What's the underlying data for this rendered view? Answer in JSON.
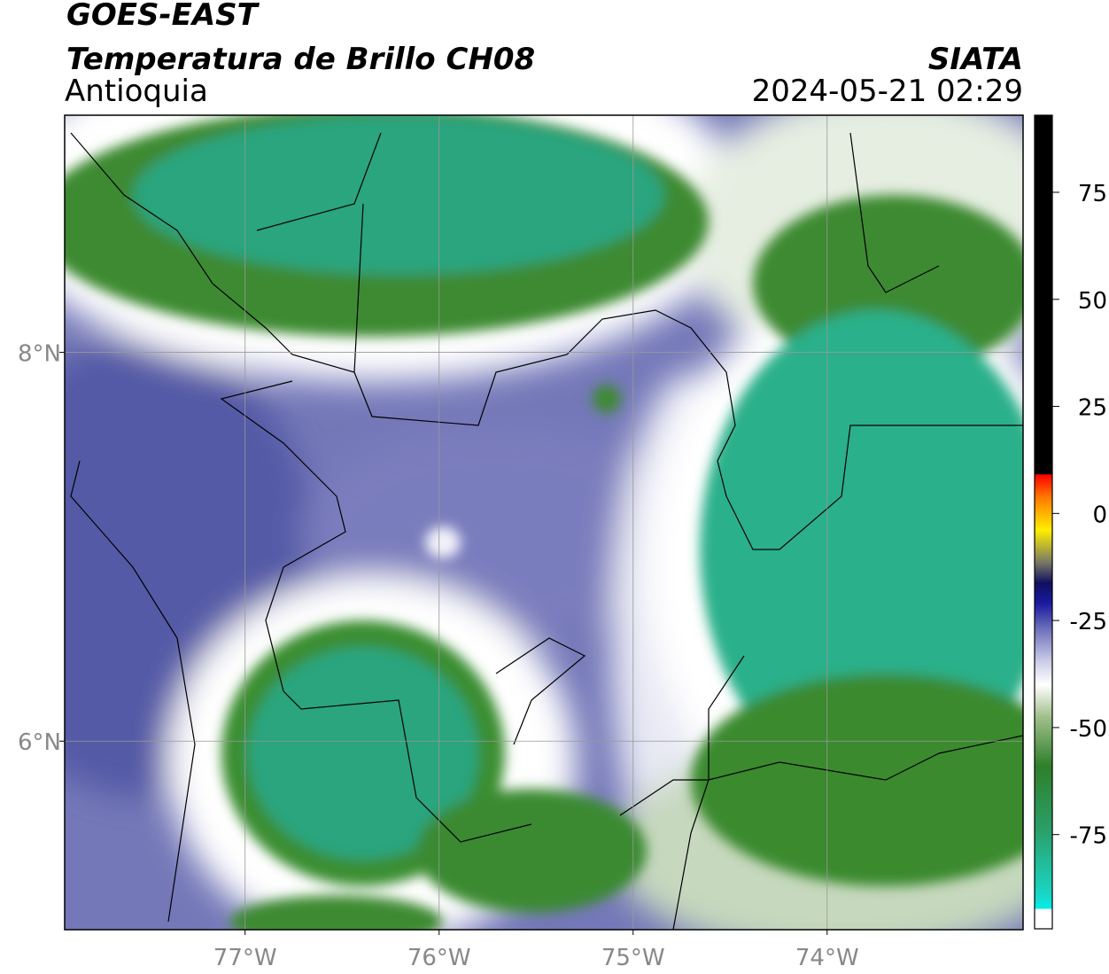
{
  "header": {
    "source": "GOES-EAST",
    "title": "Temperatura de Brillo CH08",
    "agency": "SIATA",
    "region": "Antioquia",
    "datetime": "2024-05-21 02:29"
  },
  "map": {
    "lonlim": [
      -77.93,
      -72.99
    ],
    "latlim": [
      5.03,
      9.22
    ],
    "lon_ticks": [
      {
        "value": -77,
        "label": "77°W"
      },
      {
        "value": -76,
        "label": "76°W"
      },
      {
        "value": -75,
        "label": "75°W"
      },
      {
        "value": -74,
        "label": "74°W"
      }
    ],
    "lat_ticks": [
      {
        "value": 8,
        "label": "8°N"
      },
      {
        "value": 6,
        "label": "6°N"
      }
    ]
  },
  "colorbar": {
    "lim": [
      -97,
      93
    ],
    "ticks": [
      75,
      50,
      25,
      0,
      -25,
      -50,
      -75
    ]
  }
}
